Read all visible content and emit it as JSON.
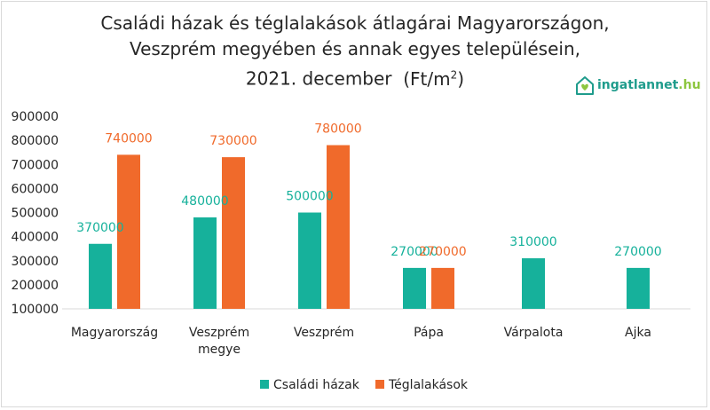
{
  "chart_data": {
    "type": "bar",
    "title_lines": [
      "Családi házak és téglalakások átlagárai Magyarországon,",
      "Veszprém megyében és annak egyes településein,",
      "2021. december"
    ],
    "unit_prefix": "(Ft/m",
    "unit_sup": "2",
    "unit_suffix": ")",
    "categories": [
      "Magyarország",
      "Veszprém megye",
      "Veszprém",
      "Pápa",
      "Várpalota",
      "Ajka"
    ],
    "category_lines": [
      [
        "Magyarország"
      ],
      [
        "Veszprém",
        "megye"
      ],
      [
        "Veszprém"
      ],
      [
        "Pápa"
      ],
      [
        "Várpalota"
      ],
      [
        "Ajka"
      ]
    ],
    "series": [
      {
        "name": "Családi házak",
        "color": "#16b19b",
        "values": [
          370000,
          480000,
          500000,
          270000,
          310000,
          270000
        ]
      },
      {
        "name": "Téglalakások",
        "color": "#f06a2b",
        "values": [
          740000,
          730000,
          780000,
          270000,
          null,
          null
        ]
      }
    ],
    "yticks": [
      "900000",
      "800000",
      "700000",
      "600000",
      "500000",
      "400000",
      "300000",
      "200000",
      "100000"
    ],
    "ylim": [
      100000,
      900000
    ],
    "xlabel": "",
    "ylabel": "",
    "legend_position": "bottom",
    "grid": false
  },
  "logo": {
    "icon": "house-heart-icon",
    "name": "ingatlannet",
    "tld": ".hu"
  }
}
